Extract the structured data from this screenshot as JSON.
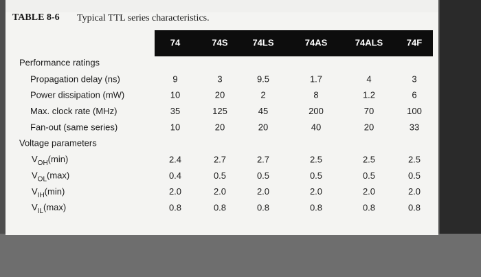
{
  "title": {
    "label": "TABLE 8-6",
    "caption": "Typical TTL series characteristics."
  },
  "table": {
    "columns": [
      "74",
      "74S",
      "74LS",
      "74AS",
      "74ALS",
      "74F"
    ],
    "sections": [
      {
        "heading": "Performance ratings",
        "rows": [
          {
            "label": "Propagation delay (ns)",
            "cells": [
              "9",
              "3",
              "9.5",
              "1.7",
              "4",
              "3"
            ]
          },
          {
            "label": "Power dissipation (mW)",
            "cells": [
              "10",
              "20",
              "2",
              "8",
              "1.2",
              "6"
            ]
          },
          {
            "label": "Max. clock rate (MHz)",
            "cells": [
              "35",
              "125",
              "45",
              "200",
              "70",
              "100"
            ]
          },
          {
            "label": "Fan-out (same series)",
            "cells": [
              "10",
              "20",
              "20",
              "40",
              "20",
              "33"
            ]
          }
        ]
      },
      {
        "heading": "Voltage parameters",
        "rows": [
          {
            "symbol": "V",
            "subscript": "OH",
            "qualifier": "(min)",
            "cells": [
              "2.4",
              "2.7",
              "2.7",
              "2.5",
              "2.5",
              "2.5"
            ]
          },
          {
            "symbol": "V",
            "subscript": "OL",
            "qualifier": "(max)",
            "cells": [
              "0.4",
              "0.5",
              "0.5",
              "0.5",
              "0.5",
              "0.5"
            ]
          },
          {
            "symbol": "V",
            "subscript": "IH",
            "qualifier": "(min)",
            "cells": [
              "2.0",
              "2.0",
              "2.0",
              "2.0",
              "2.0",
              "2.0"
            ]
          },
          {
            "symbol": "V",
            "subscript": "IL",
            "qualifier": "(max)",
            "cells": [
              "0.8",
              "0.8",
              "0.8",
              "0.8",
              "0.8",
              "0.8"
            ]
          }
        ]
      }
    ]
  }
}
